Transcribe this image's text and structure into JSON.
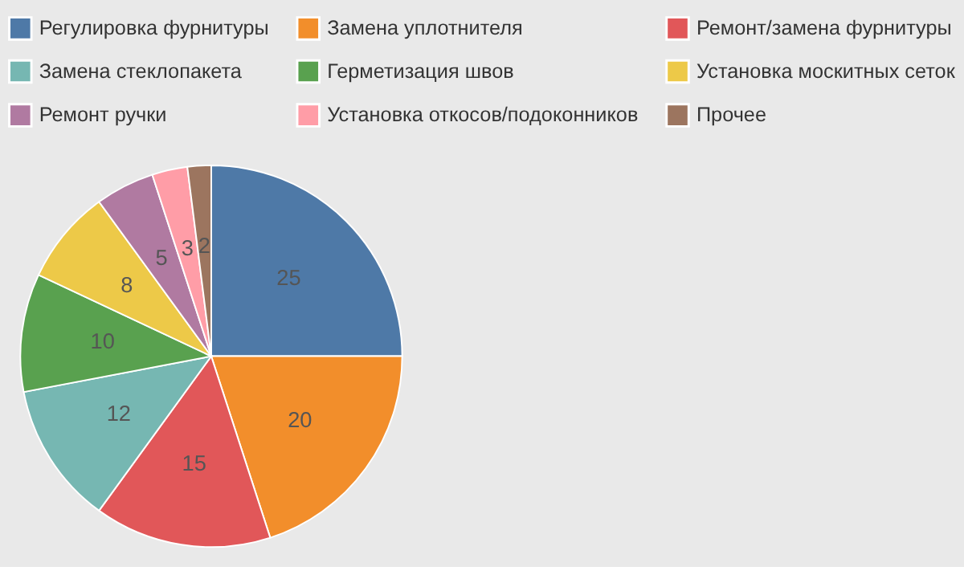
{
  "chart_data": {
    "type": "pie",
    "categories": [
      "Регулировка фурнитуры",
      "Замена уплотнителя",
      "Ремонт/замена фурнитуры",
      "Замена стеклопакета",
      "Герметизация швов",
      "Установка москитных сеток",
      "Ремонт ручки",
      "Установка откосов/подоконников",
      "Прочее"
    ],
    "values": [
      25,
      20,
      15,
      12,
      10,
      8,
      5,
      3,
      2
    ],
    "colors": [
      "#4e79a7",
      "#f28e2b",
      "#e15759",
      "#76b7b2",
      "#59a14f",
      "#edc948",
      "#b07aa1",
      "#ff9da7",
      "#9c755f"
    ],
    "data_labels": true,
    "legend": "top"
  }
}
